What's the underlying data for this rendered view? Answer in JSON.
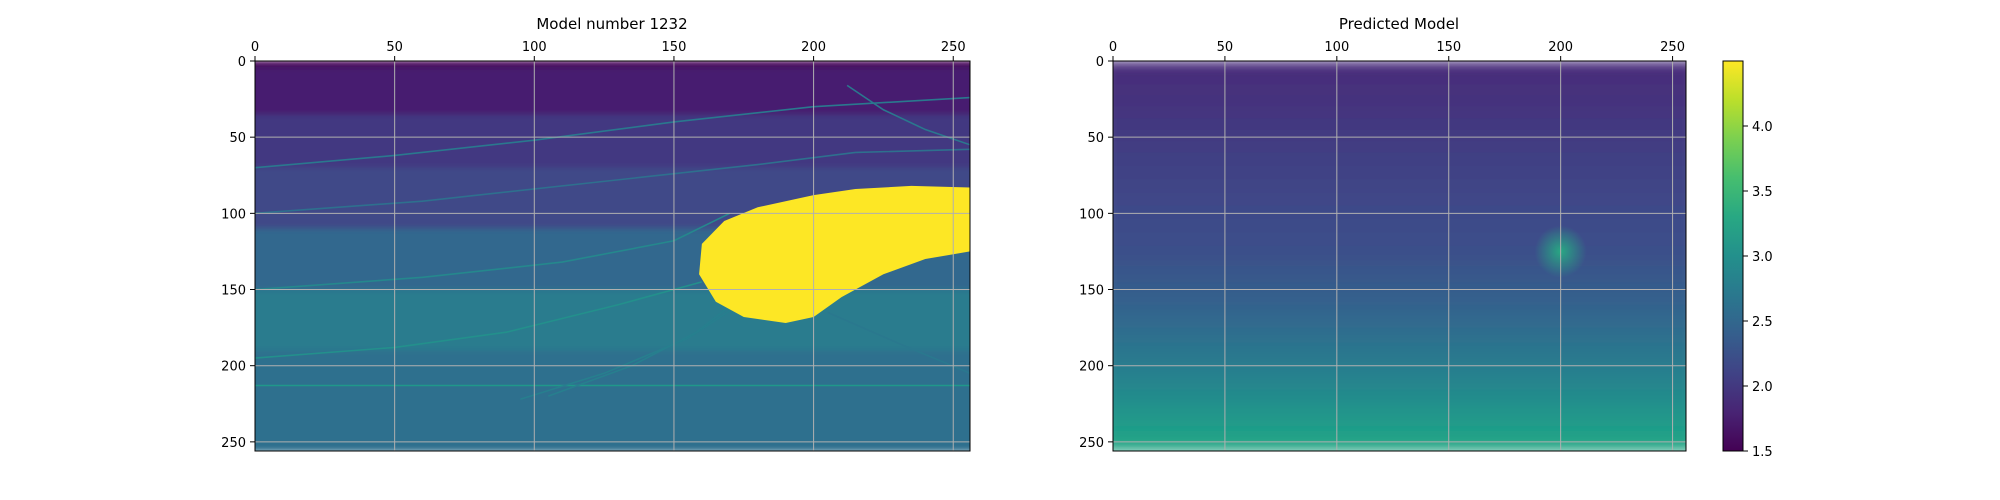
{
  "chart_data": [
    {
      "type": "heatmap",
      "title": "Model number 1232",
      "xlabel": "",
      "ylabel": "",
      "x_ticks": [
        0,
        50,
        100,
        150,
        200,
        250
      ],
      "y_ticks": [
        0,
        50,
        100,
        150,
        200,
        250
      ],
      "xlim": [
        0,
        256
      ],
      "ylim": [
        256,
        0
      ],
      "x_axis_position": "top",
      "grid": true,
      "colormap": "viridis",
      "background_layers": [
        {
          "depth_from": 0,
          "depth_to": 4,
          "value": 1.5
        },
        {
          "depth_from": 4,
          "depth_to": 35,
          "value": 1.75
        },
        {
          "depth_from": 35,
          "depth_to": 70,
          "value": 2.0
        },
        {
          "depth_from": 70,
          "depth_to": 110,
          "value": 2.15
        },
        {
          "depth_from": 110,
          "depth_to": 150,
          "value": 2.5
        },
        {
          "depth_from": 150,
          "depth_to": 190,
          "value": 2.75
        },
        {
          "depth_from": 190,
          "depth_to": 256,
          "value": 2.6
        }
      ],
      "salt_body": {
        "value": 4.5,
        "outline": [
          [
            160,
            120
          ],
          [
            168,
            105
          ],
          [
            180,
            96
          ],
          [
            200,
            88
          ],
          [
            215,
            84
          ],
          [
            235,
            82
          ],
          [
            256,
            83
          ],
          [
            256,
            125
          ],
          [
            240,
            130
          ],
          [
            225,
            140
          ],
          [
            210,
            155
          ],
          [
            200,
            168
          ],
          [
            190,
            172
          ],
          [
            175,
            168
          ],
          [
            165,
            158
          ],
          [
            159,
            140
          ]
        ]
      },
      "horizons": [
        {
          "value": 2.7,
          "points": [
            [
              0,
              70
            ],
            [
              50,
              62
            ],
            [
              100,
              52
            ],
            [
              150,
              40
            ],
            [
              200,
              30
            ],
            [
              256,
              24
            ]
          ]
        },
        {
          "value": 2.6,
          "points": [
            [
              0,
              100
            ],
            [
              60,
              92
            ],
            [
              120,
              80
            ],
            [
              180,
              68
            ],
            [
              215,
              60
            ],
            [
              256,
              58
            ]
          ]
        },
        {
          "value": 2.9,
          "points": [
            [
              0,
              150
            ],
            [
              60,
              142
            ],
            [
              110,
              132
            ],
            [
              150,
              118
            ],
            [
              170,
              100
            ]
          ]
        },
        {
          "value": 3.0,
          "points": [
            [
              0,
              195
            ],
            [
              50,
              188
            ],
            [
              90,
              178
            ],
            [
              130,
              160
            ],
            [
              160,
              145
            ]
          ]
        },
        {
          "value": 3.1,
          "points": [
            [
              0,
              213
            ],
            [
              256,
              213
            ]
          ]
        },
        {
          "value": 2.8,
          "points": [
            [
              95,
              222
            ],
            [
              125,
              205
            ],
            [
              155,
              182
            ],
            [
              175,
              158
            ]
          ]
        },
        {
          "value": 2.8,
          "points": [
            [
              105,
              220
            ],
            [
              135,
              200
            ],
            [
              158,
              178
            ],
            [
              172,
              158
            ]
          ]
        },
        {
          "value": 2.7,
          "points": [
            [
              212,
              16
            ],
            [
              225,
              32
            ],
            [
              240,
              45
            ],
            [
              256,
              55
            ]
          ]
        },
        {
          "value": 2.7,
          "points": [
            [
              205,
              165
            ],
            [
              230,
              185
            ],
            [
              256,
              205
            ]
          ]
        }
      ]
    },
    {
      "type": "heatmap",
      "title": "Predicted Model",
      "xlabel": "",
      "ylabel": "",
      "x_ticks": [
        0,
        50,
        100,
        150,
        200,
        250
      ],
      "y_ticks": [
        0,
        50,
        100,
        150,
        200,
        250
      ],
      "xlim": [
        0,
        256
      ],
      "ylim": [
        256,
        0
      ],
      "x_axis_position": "top",
      "grid": true,
      "colormap": "viridis",
      "background_gradient": [
        {
          "depth": 0,
          "value": 1.85
        },
        {
          "depth": 60,
          "value": 2.05
        },
        {
          "depth": 130,
          "value": 2.25
        },
        {
          "depth": 170,
          "value": 2.5
        },
        {
          "depth": 210,
          "value": 2.85
        },
        {
          "depth": 256,
          "value": 3.3
        }
      ],
      "hotspot": {
        "x": 200,
        "y": 125,
        "value": 3.3
      }
    }
  ],
  "colorbar": {
    "colormap": "viridis",
    "vmin": 1.5,
    "vmax": 4.5,
    "ticks": [
      "1.5",
      "2.0",
      "2.5",
      "3.0",
      "3.5",
      "4.0"
    ],
    "tick_values": [
      1.5,
      2.0,
      2.5,
      3.0,
      3.5,
      4.0
    ]
  }
}
